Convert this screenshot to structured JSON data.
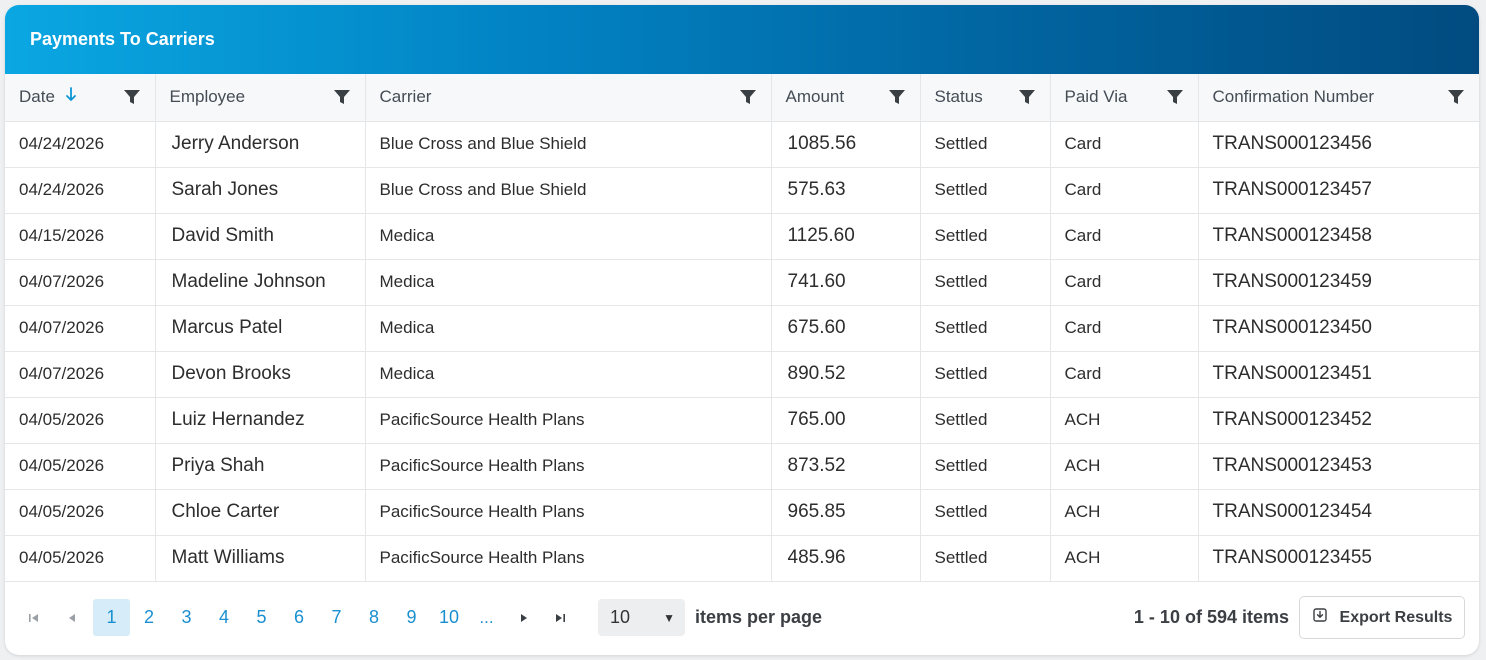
{
  "header": {
    "title": "Payments To Carriers"
  },
  "columns": [
    {
      "label": "Date"
    },
    {
      "label": "Employee"
    },
    {
      "label": "Carrier"
    },
    {
      "label": "Amount"
    },
    {
      "label": "Status"
    },
    {
      "label": "Paid Via"
    },
    {
      "label": "Confirmation Number"
    }
  ],
  "rows": [
    {
      "date": "04/24/2026",
      "employee": "Jerry Anderson",
      "carrier": "Blue Cross and Blue Shield",
      "amount": "1085.56",
      "status": "Settled",
      "paid_via": "Card",
      "confirmation": "TRANS000123456"
    },
    {
      "date": "04/24/2026",
      "employee": "Sarah Jones",
      "carrier": "Blue Cross and Blue Shield",
      "amount": "575.63",
      "status": "Settled",
      "paid_via": "Card",
      "confirmation": "TRANS000123457"
    },
    {
      "date": "04/15/2026",
      "employee": "David Smith",
      "carrier": "Medica",
      "amount": "1125.60",
      "status": "Settled",
      "paid_via": "Card",
      "confirmation": "TRANS000123458"
    },
    {
      "date": "04/07/2026",
      "employee": "Madeline Johnson",
      "carrier": "Medica",
      "amount": "741.60",
      "status": "Settled",
      "paid_via": "Card",
      "confirmation": "TRANS000123459"
    },
    {
      "date": "04/07/2026",
      "employee": "Marcus Patel",
      "carrier": "Medica",
      "amount": "675.60",
      "status": "Settled",
      "paid_via": "Card",
      "confirmation": "TRANS000123450"
    },
    {
      "date": "04/07/2026",
      "employee": "Devon Brooks",
      "carrier": "Medica",
      "amount": "890.52",
      "status": "Settled",
      "paid_via": "Card",
      "confirmation": "TRANS000123451"
    },
    {
      "date": "04/05/2026",
      "employee": "Luiz Hernandez",
      "carrier": "PacificSource Health Plans",
      "amount": "765.00",
      "status": "Settled",
      "paid_via": "ACH",
      "confirmation": "TRANS000123452"
    },
    {
      "date": "04/05/2026",
      "employee": "Priya Shah",
      "carrier": "PacificSource Health Plans",
      "amount": "873.52",
      "status": "Settled",
      "paid_via": "ACH",
      "confirmation": "TRANS000123453"
    },
    {
      "date": "04/05/2026",
      "employee": "Chloe Carter",
      "carrier": "PacificSource Health Plans",
      "amount": "965.85",
      "status": "Settled",
      "paid_via": "ACH",
      "confirmation": "TRANS000123454"
    },
    {
      "date": "04/05/2026",
      "employee": "Matt Williams",
      "carrier": "PacificSource Health Plans",
      "amount": "485.96",
      "status": "Settled",
      "paid_via": "ACH",
      "confirmation": "TRANS000123455"
    }
  ],
  "sort": {
    "column": "Date",
    "direction": "descending",
    "icon": "arrow-down-icon"
  },
  "pager": {
    "pages": [
      "1",
      "2",
      "3",
      "4",
      "5",
      "6",
      "7",
      "8",
      "9",
      "10"
    ],
    "current_page": "1",
    "ellipsis": "...",
    "page_size": "10",
    "items_per_page_label": "items per page",
    "count_info": "1 - 10 of 594 items",
    "export_label": "Export Results"
  },
  "colors": {
    "header_gradient_start": "#0aa7e2",
    "header_gradient_end": "#014b80",
    "accent": "#1a8fd0",
    "active_page_bg": "#d6ecf8"
  }
}
